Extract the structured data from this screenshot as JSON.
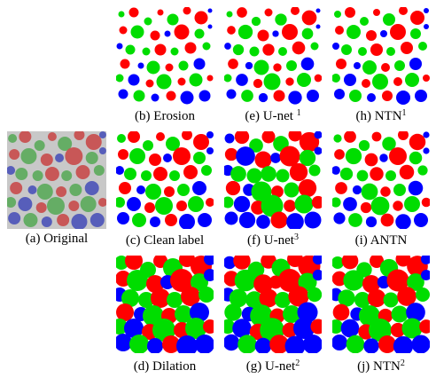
{
  "figure": {
    "panels": [
      {
        "id": "a",
        "caption": "(a) Original",
        "variant": "original"
      },
      {
        "id": "b",
        "caption": "(b) Erosion",
        "variant": "erosion"
      },
      {
        "id": "e",
        "caption": "(e) U-net",
        "sup": "1",
        "variant": "unet1"
      },
      {
        "id": "h",
        "caption": "(h) NTN",
        "sup": "1",
        "variant": "ntn1"
      },
      {
        "id": "c",
        "caption": "(c) Clean label",
        "variant": "clean"
      },
      {
        "id": "f",
        "caption": "(f) U-net",
        "sup": "3",
        "variant": "unet3"
      },
      {
        "id": "i",
        "caption": "(i) ANTN",
        "variant": "antn"
      },
      {
        "id": "d",
        "caption": "(d) Dilation",
        "variant": "dilation"
      },
      {
        "id": "g",
        "caption": "(g) U-net",
        "sup": "2",
        "variant": "unet2"
      },
      {
        "id": "j",
        "caption": "(j) NTN",
        "sup": "2",
        "variant": "ntn2"
      }
    ],
    "colors": {
      "red": "#ff0000",
      "green": "#00dd00",
      "blue": "#0000ff",
      "original_background": "#c8c8c8",
      "original_red": "#c84a4a",
      "original_green": "#5aaa5a",
      "original_blue": "#4a52b8"
    }
  }
}
